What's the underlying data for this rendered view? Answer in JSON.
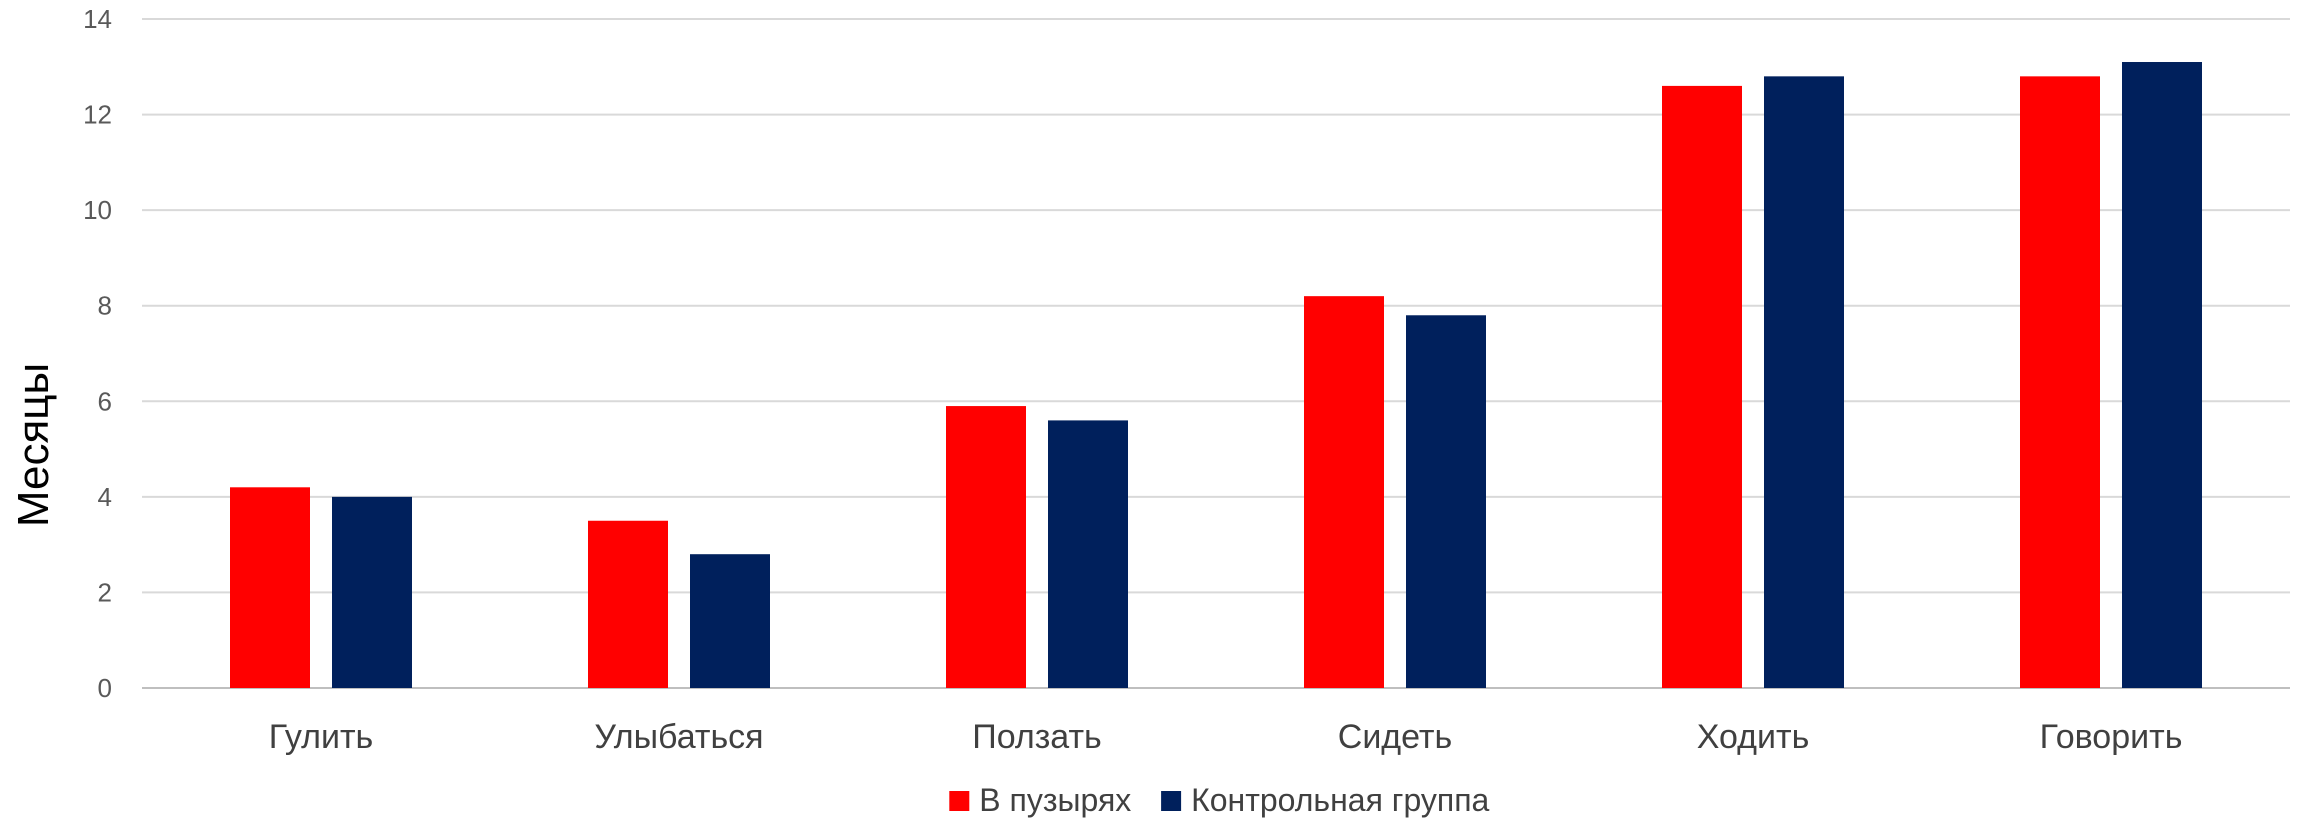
{
  "chart_data": {
    "type": "bar",
    "title": "",
    "xlabel": "",
    "ylabel": "Месяцы",
    "ylim": [
      0,
      14
    ],
    "yticks": [
      0,
      2,
      4,
      6,
      8,
      10,
      12,
      14
    ],
    "grid": true,
    "legend_position": "bottom",
    "categories": [
      "Гулить",
      "Улыбаться",
      "Ползать",
      "Сидеть",
      "Ходить",
      "Говорить"
    ],
    "series": [
      {
        "name": "В пузырях",
        "color": "#FF0000",
        "values": [
          4.2,
          3.5,
          5.9,
          8.2,
          12.6,
          12.8
        ]
      },
      {
        "name": "Контрольная группа",
        "color": "#00205C",
        "values": [
          4.0,
          2.8,
          5.6,
          7.8,
          12.8,
          13.1
        ]
      }
    ]
  }
}
